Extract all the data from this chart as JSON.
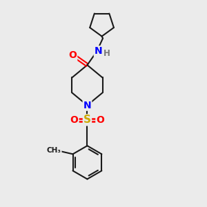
{
  "background_color": "#ebebeb",
  "figure_size": [
    3.0,
    3.0
  ],
  "dpi": 100,
  "bond_color": "#1a1a1a",
  "atom_colors": {
    "O": "#ff0000",
    "N": "#0000ff",
    "S": "#ccaa00",
    "H": "#777777",
    "C": "#1a1a1a"
  },
  "bond_lw": 1.5,
  "font_size_atoms": 10,
  "font_size_H": 8.5,
  "font_size_ch3": 7.5
}
